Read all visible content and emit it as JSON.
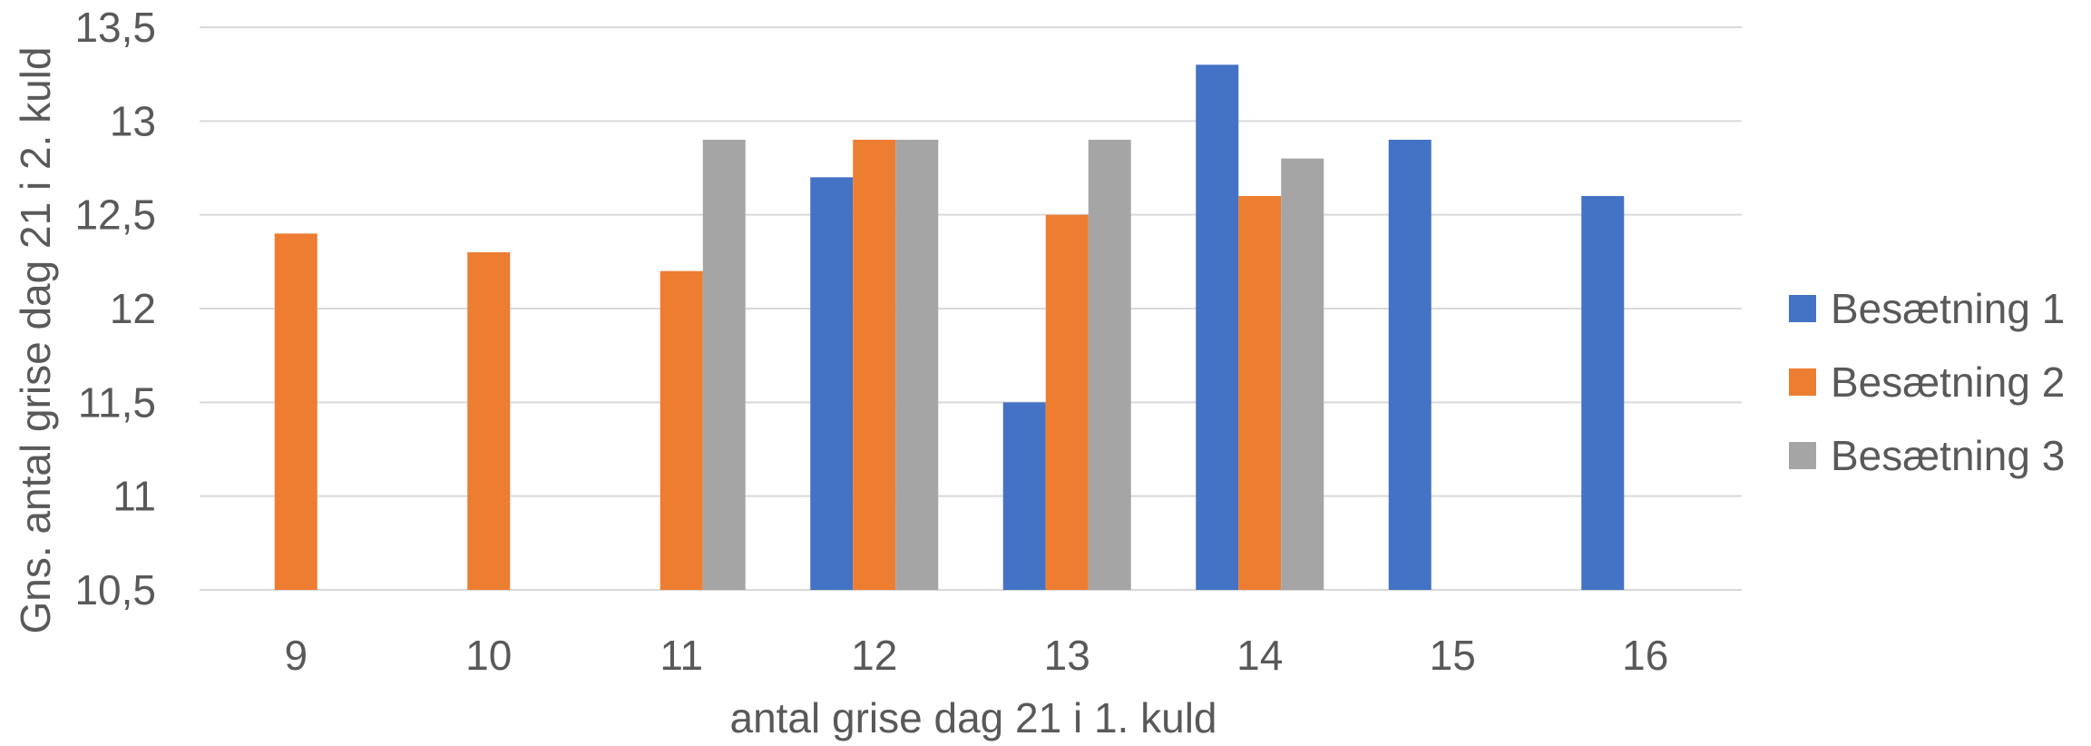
{
  "chart_data": {
    "type": "bar",
    "title": "",
    "xlabel": "antal grise dag 21 i 1. kuld",
    "ylabel": "Gns. antal grise dag 21 i 2. kuld",
    "categories": [
      "9",
      "10",
      "11",
      "12",
      "13",
      "14",
      "15",
      "16"
    ],
    "ylim": [
      10.5,
      13.5
    ],
    "yticks": [
      "10,5",
      "11",
      "11,5",
      "12",
      "12,5",
      "13",
      "13,5"
    ],
    "grid": true,
    "legend_position": "right",
    "series": [
      {
        "name": "Besætning 1",
        "color": "#4472c4",
        "values": [
          null,
          null,
          null,
          12.7,
          11.5,
          13.3,
          12.9,
          12.6
        ]
      },
      {
        "name": "Besætning 2",
        "color": "#ed7d31",
        "values": [
          12.4,
          12.3,
          12.2,
          12.9,
          12.5,
          12.6,
          null,
          null
        ]
      },
      {
        "name": "Besætning 3",
        "color": "#a5a5a5",
        "values": [
          null,
          null,
          12.9,
          12.9,
          12.9,
          12.8,
          null,
          null
        ]
      }
    ]
  }
}
